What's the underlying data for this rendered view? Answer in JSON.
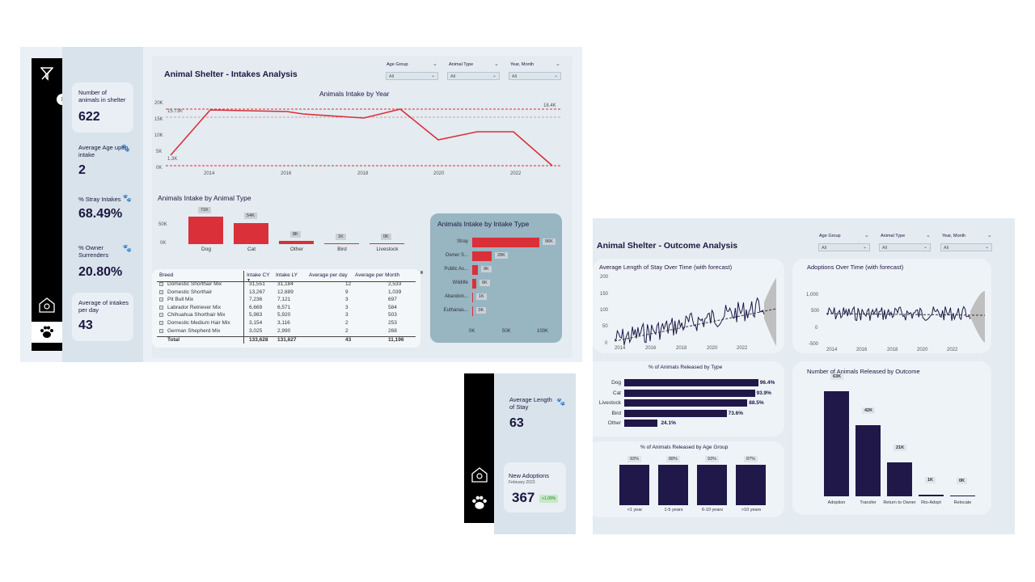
{
  "intakes": {
    "title": "Animal Shelter -  Intakes Analysis",
    "slicers": [
      {
        "label": "Age Group",
        "value": "All"
      },
      {
        "label": "Animal Type",
        "value": "All"
      },
      {
        "label": "Year, Month",
        "value": "All"
      }
    ],
    "kpis": [
      {
        "label": "Number of animals in shelter",
        "value": "622"
      },
      {
        "label": "Average Age upon intake",
        "value": "2"
      },
      {
        "label": "% Stray Intakes",
        "value": "68.49%"
      },
      {
        "label": "% Owner Surrenders",
        "value": "20.80%"
      },
      {
        "label": "Average of intakes per day",
        "value": "43"
      }
    ],
    "line_chart": {
      "title": "Animals Intake by Year",
      "y_ticks": [
        "20K",
        "15K",
        "10K",
        "5K",
        "0K"
      ],
      "x_ticks": [
        "2014",
        "2016",
        "2018",
        "2020",
        "2022"
      ],
      "annotations": {
        "max": "18.4K",
        "avg": "15.73K",
        "min": "1.3K"
      }
    },
    "type_chart": {
      "title": "Animals Intake by Animal Type",
      "y_ticks": [
        "50K",
        "0K"
      ],
      "bars": [
        {
          "label": "Dog",
          "value": "71K"
        },
        {
          "label": "Cat",
          "value": "54K"
        },
        {
          "label": "Other",
          "value": "8K"
        },
        {
          "label": "Bird",
          "value": "1K"
        },
        {
          "label": "Livestock",
          "value": "0K"
        }
      ]
    },
    "table": {
      "headers": [
        "Breed",
        "Intake CY",
        "Intake LY",
        "Average per day",
        "Average per Month"
      ],
      "rows": [
        [
          "Domestic Shorthair Mix",
          "31,551",
          "31,184",
          "12",
          "2,533"
        ],
        [
          "Domestic Shorthair",
          "13,267",
          "12,889",
          "9",
          "1,039"
        ],
        [
          "Pit Bull Mix",
          "7,236",
          "7,121",
          "3",
          "697"
        ],
        [
          "Labrador Retriever Mix",
          "6,669",
          "6,571",
          "3",
          "584"
        ],
        [
          "Chihuahua Shorthair Mix",
          "5,983",
          "5,920",
          "3",
          "503"
        ],
        [
          "Domestic Medium Hair Mix",
          "3,154",
          "3,116",
          "2",
          "253"
        ],
        [
          "German Shepherd Mix",
          "3,025",
          "2,990",
          "2",
          "268"
        ]
      ],
      "total": [
        "Total",
        "133,628",
        "131,627",
        "43",
        "11,196"
      ]
    },
    "intake_type_chart": {
      "title": "Animals Intake by Intake Type",
      "bars": [
        {
          "label": "Stray",
          "value": "96K"
        },
        {
          "label": "Owner S...",
          "value": "28K"
        },
        {
          "label": "Public As...",
          "value": "8K"
        },
        {
          "label": "Wildlife",
          "value": "6K"
        },
        {
          "label": "Abandon...",
          "value": "1K"
        },
        {
          "label": "Euthanas...",
          "value": "0K"
        }
      ],
      "x_ticks": [
        "0K",
        "50K",
        "100K"
      ]
    }
  },
  "outcome": {
    "title": "Animal Shelter -  Outcome Analysis",
    "slicers": [
      {
        "label": "Age Group",
        "value": "All"
      },
      {
        "label": "Animal Type",
        "value": "All"
      },
      {
        "label": "Year, Month",
        "value": "All"
      }
    ],
    "kpis": {
      "avg_stay_label": "Average Length of Stay",
      "avg_stay_value": "63",
      "adoptions_label": "New Adoptions",
      "adoptions_sub": "February 2023",
      "adoptions_value": "367",
      "adoptions_delta": "+1.09%"
    },
    "stay_chart": {
      "title": "Average Length of Stay Over Time (with forecast)",
      "y_ticks": [
        "200",
        "150",
        "100",
        "50",
        "0"
      ],
      "x_ticks": [
        "2014",
        "2016",
        "2018",
        "2020",
        "2022"
      ]
    },
    "adoptions_chart": {
      "title": "Adoptions Over Time (with forecast)",
      "y_ticks": [
        "1,000",
        "500",
        "0",
        "-500"
      ],
      "x_ticks": [
        "2014",
        "2016",
        "2018",
        "2020",
        "2022"
      ]
    },
    "released_type_chart": {
      "title": "% of Animals Released by Type",
      "bars": [
        {
          "label": "Dog",
          "value": "96.4%",
          "pct": 96.4
        },
        {
          "label": "Cat",
          "value": "93.9%",
          "pct": 93.9
        },
        {
          "label": "Livestock",
          "value": "88.5%",
          "pct": 88.5
        },
        {
          "label": "Bird",
          "value": "73.6%",
          "pct": 73.6
        },
        {
          "label": "Other",
          "value": "24.1%",
          "pct": 24.1
        }
      ]
    },
    "released_age_chart": {
      "title": "% of Animals Released by Age Group",
      "bars": [
        {
          "label": "<1 year",
          "value": "93%"
        },
        {
          "label": "1-5 years",
          "value": "88%"
        },
        {
          "label": "6-10 years",
          "value": "93%"
        },
        {
          "label": ">10 years",
          "value": "87%"
        }
      ]
    },
    "released_outcome_chart": {
      "title": "Number of Animals Released by Outcome",
      "bars": [
        {
          "label": "Adoption",
          "value": "63K"
        },
        {
          "label": "Transfer",
          "value": "42K"
        },
        {
          "label": "Return to Owner",
          "value": "21K"
        },
        {
          "label": "Rto-Adopt",
          "value": "1K"
        },
        {
          "label": "Relocate",
          "value": "0K"
        }
      ]
    }
  },
  "colors": {
    "intake_red": "#d9303a",
    "outcome_purple": "#201848",
    "panel_blue": "#98b5c2"
  }
}
